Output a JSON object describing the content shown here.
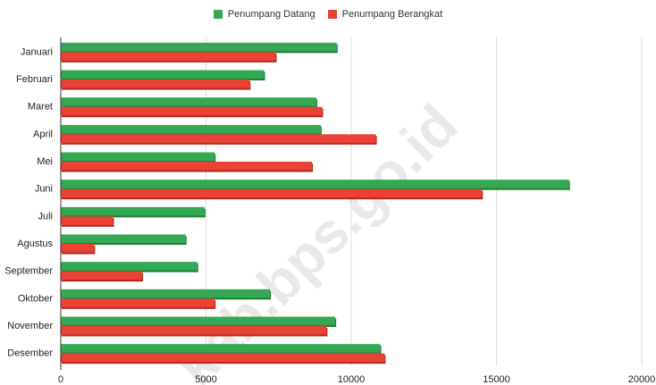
{
  "chart_data": {
    "type": "bar",
    "orientation": "horizontal",
    "categories": [
      "Januari",
      "Februari",
      "Maret",
      "April",
      "Mei",
      "Juni",
      "Juli",
      "Agustus",
      "September",
      "Oktober",
      "November",
      "Desember"
    ],
    "series": [
      {
        "name": "Penumpang Datang",
        "color": "#34a853",
        "values": [
          9500,
          7000,
          8800,
          8950,
          5300,
          17500,
          4950,
          4300,
          4700,
          7200,
          9450,
          11000
        ]
      },
      {
        "name": "Penumpang Berangkat",
        "color": "#ea4335",
        "values": [
          7400,
          6500,
          9000,
          10850,
          8650,
          14500,
          1800,
          1150,
          2800,
          5300,
          9150,
          11150
        ]
      }
    ],
    "xlim": [
      0,
      20000
    ],
    "x_ticks": [
      0,
      5000,
      10000,
      15000,
      20000
    ],
    "x_tick_labels": [
      "0",
      "5000",
      "10000",
      "15000",
      "20000"
    ],
    "grid": true,
    "legend_position": "top",
    "watermark": "kab.bps.go.id"
  }
}
